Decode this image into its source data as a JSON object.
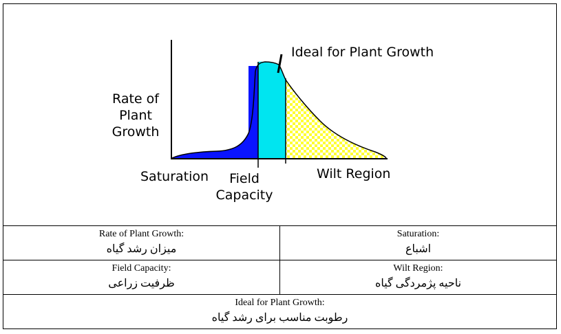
{
  "diagram": {
    "labels": {
      "rate_line1": "Rate of",
      "rate_line2": "Plant",
      "rate_line3": "Growth",
      "ideal": "Ideal for Plant Growth",
      "saturation": "Saturation",
      "field_line1": "Field",
      "field_line2": "Capacity",
      "wilt": "Wilt Region"
    },
    "colors": {
      "saturation_zone": "#0a14ff",
      "ideal_zone": "#00e5f0",
      "wilt_zone": "#ffff33",
      "wilt_pattern_alt": "#ffffff",
      "axis": "#000000"
    }
  },
  "glossary": {
    "rows": [
      [
        {
          "en": "Rate of Plant Growth:",
          "fa": "میزان رشد گیاه"
        },
        {
          "en": "Saturation:",
          "fa": "اشباع"
        }
      ],
      [
        {
          "en": "Field Capacity:",
          "fa": "ظرفیت زراعی"
        },
        {
          "en": "Wilt Region:",
          "fa": "ناحیه پژمردگی گیاه"
        }
      ],
      [
        {
          "en": "Ideal for Plant Growth:",
          "fa": "رطوبت مناسب برای رشد گیاه"
        }
      ]
    ]
  }
}
